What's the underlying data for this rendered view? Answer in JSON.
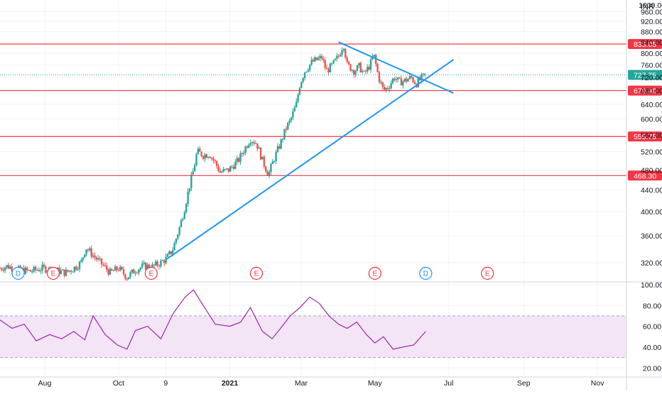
{
  "currency_label": "INR",
  "top_tick_partial": "1000.00",
  "colors": {
    "up": "#26a69a",
    "down": "#ef5350",
    "hline": "#f23645",
    "trendline": "#2196f3",
    "rsi_line": "#9c27b0",
    "rsi_band": "#f3e5f5",
    "grid": "#f0f3fa",
    "axis_text": "#131722"
  },
  "chart_data": [
    {
      "type": "candlestick",
      "title": "",
      "ylabel": "",
      "y_scale": "log",
      "ylim": [
        295,
        1010
      ],
      "y_ticks": [
        "320.00",
        "360.00",
        "400.00",
        "440.00",
        "480.00",
        "520.00",
        "560.00",
        "600.00",
        "640.00",
        "680.00",
        "720.00",
        "760.00",
        "800.00",
        "840.00",
        "880.00",
        "920.00",
        "960.00"
      ],
      "x_ticks": [
        "Aug",
        "Oct",
        "9",
        "2021",
        "Mar",
        "May",
        "Jul",
        "Sep",
        "Nov"
      ],
      "xlim": [
        "2020-06-25",
        "2021-11-25"
      ],
      "grid": true,
      "horizontal_levels": [
        {
          "value": 833.05,
          "label": "833.05"
        },
        {
          "value": 679.4,
          "label": "679.40"
        },
        {
          "value": 555.75,
          "label": "555.75"
        },
        {
          "value": 468.3,
          "label": "468.30"
        }
      ],
      "last_price": {
        "value": 727.75,
        "label": "727.75"
      },
      "trendlines": [
        {
          "name": "support",
          "from": {
            "date": "2020-11-10",
            "price": 325
          },
          "to": {
            "date": "2021-07-05",
            "price": 778
          }
        },
        {
          "name": "resistance",
          "from": {
            "date": "2021-04-01",
            "price": 840
          },
          "to": {
            "date": "2021-07-05",
            "price": 672
          }
        }
      ],
      "event_markers": [
        {
          "date": "2020-07-10",
          "label": "D",
          "kind": "dividend"
        },
        {
          "date": "2020-08-08",
          "label": "E",
          "kind": "earnings"
        },
        {
          "date": "2020-10-28",
          "label": "E",
          "kind": "earnings"
        },
        {
          "date": "2021-01-23",
          "label": "E",
          "kind": "earnings"
        },
        {
          "date": "2021-05-01",
          "label": "E",
          "kind": "earnings"
        },
        {
          "date": "2021-06-12",
          "label": "D",
          "kind": "dividend"
        },
        {
          "date": "2021-08-02",
          "label": "E",
          "kind": "earnings"
        }
      ],
      "price_path": [
        [
          "2020-06-25",
          312
        ],
        [
          "2020-07-01",
          315
        ],
        [
          "2020-07-10",
          310
        ],
        [
          "2020-07-20",
          308
        ],
        [
          "2020-07-30",
          312
        ],
        [
          "2020-08-08",
          310
        ],
        [
          "2020-08-18",
          306
        ],
        [
          "2020-08-25",
          312
        ],
        [
          "2020-08-31",
          320
        ],
        [
          "2020-09-04",
          342
        ],
        [
          "2020-09-10",
          330
        ],
        [
          "2020-09-17",
          318
        ],
        [
          "2020-09-24",
          306
        ],
        [
          "2020-10-01",
          312
        ],
        [
          "2020-10-08",
          300
        ],
        [
          "2020-10-15",
          310
        ],
        [
          "2020-10-22",
          315
        ],
        [
          "2020-10-29",
          314
        ],
        [
          "2020-11-05",
          320
        ],
        [
          "2020-11-10",
          326
        ],
        [
          "2020-11-15",
          340
        ],
        [
          "2020-11-20",
          370
        ],
        [
          "2020-11-24",
          400
        ],
        [
          "2020-11-28",
          440
        ],
        [
          "2020-12-02",
          480
        ],
        [
          "2020-12-05",
          520
        ],
        [
          "2020-12-10",
          512
        ],
        [
          "2020-12-15",
          515
        ],
        [
          "2020-12-20",
          495
        ],
        [
          "2020-12-24",
          475
        ],
        [
          "2020-12-31",
          480
        ],
        [
          "2021-01-08",
          500
        ],
        [
          "2021-01-14",
          530
        ],
        [
          "2021-01-18",
          550
        ],
        [
          "2021-01-23",
          540
        ],
        [
          "2021-01-28",
          500
        ],
        [
          "2021-02-02",
          470
        ],
        [
          "2021-02-06",
          500
        ],
        [
          "2021-02-12",
          540
        ],
        [
          "2021-02-17",
          580
        ],
        [
          "2021-02-20",
          595
        ],
        [
          "2021-02-25",
          640
        ],
        [
          "2021-02-28",
          700
        ],
        [
          "2021-03-04",
          740
        ],
        [
          "2021-03-10",
          770
        ],
        [
          "2021-03-18",
          785
        ],
        [
          "2021-03-22",
          740
        ],
        [
          "2021-03-27",
          760
        ],
        [
          "2021-04-01",
          790
        ],
        [
          "2021-04-05",
          835
        ],
        [
          "2021-04-08",
          760
        ],
        [
          "2021-04-14",
          740
        ],
        [
          "2021-04-18",
          755
        ],
        [
          "2021-04-22",
          730
        ],
        [
          "2021-04-27",
          760
        ],
        [
          "2021-04-30",
          795
        ],
        [
          "2021-05-04",
          720
        ],
        [
          "2021-05-08",
          680
        ],
        [
          "2021-05-12",
          690
        ],
        [
          "2021-05-17",
          720
        ],
        [
          "2021-05-21",
          705
        ],
        [
          "2021-05-26",
          710
        ],
        [
          "2021-05-31",
          720
        ],
        [
          "2021-06-04",
          700
        ],
        [
          "2021-06-08",
          715
        ],
        [
          "2021-06-12",
          727.75
        ]
      ]
    },
    {
      "type": "line",
      "title": "",
      "ylabel": "",
      "ylim": [
        12,
        102
      ],
      "y_ticks": [
        "20.00",
        "40.00",
        "60.00",
        "80.00",
        "100.00"
      ],
      "band": [
        30,
        70
      ],
      "grid": true,
      "x": [
        "2020-06-25",
        "2020-07-05",
        "2020-07-15",
        "2020-07-25",
        "2020-08-05",
        "2020-08-15",
        "2020-08-25",
        "2020-09-03",
        "2020-09-10",
        "2020-09-20",
        "2020-09-30",
        "2020-10-08",
        "2020-10-15",
        "2020-10-25",
        "2020-11-05",
        "2020-11-15",
        "2020-11-25",
        "2020-12-02",
        "2020-12-10",
        "2020-12-20",
        "2021-01-01",
        "2021-01-10",
        "2021-01-18",
        "2021-01-28",
        "2021-02-05",
        "2021-02-12",
        "2021-02-20",
        "2021-02-28",
        "2021-03-08",
        "2021-03-16",
        "2021-03-24",
        "2021-04-01",
        "2021-04-08",
        "2021-04-16",
        "2021-04-24",
        "2021-05-01",
        "2021-05-08",
        "2021-05-16",
        "2021-05-24",
        "2021-06-02",
        "2021-06-12"
      ],
      "values": [
        66,
        58,
        62,
        46,
        52,
        48,
        55,
        47,
        70,
        52,
        42,
        38,
        56,
        60,
        48,
        72,
        88,
        95,
        80,
        62,
        60,
        64,
        78,
        55,
        48,
        58,
        70,
        78,
        88,
        82,
        70,
        62,
        58,
        64,
        52,
        44,
        50,
        38,
        40,
        42,
        55
      ]
    }
  ]
}
